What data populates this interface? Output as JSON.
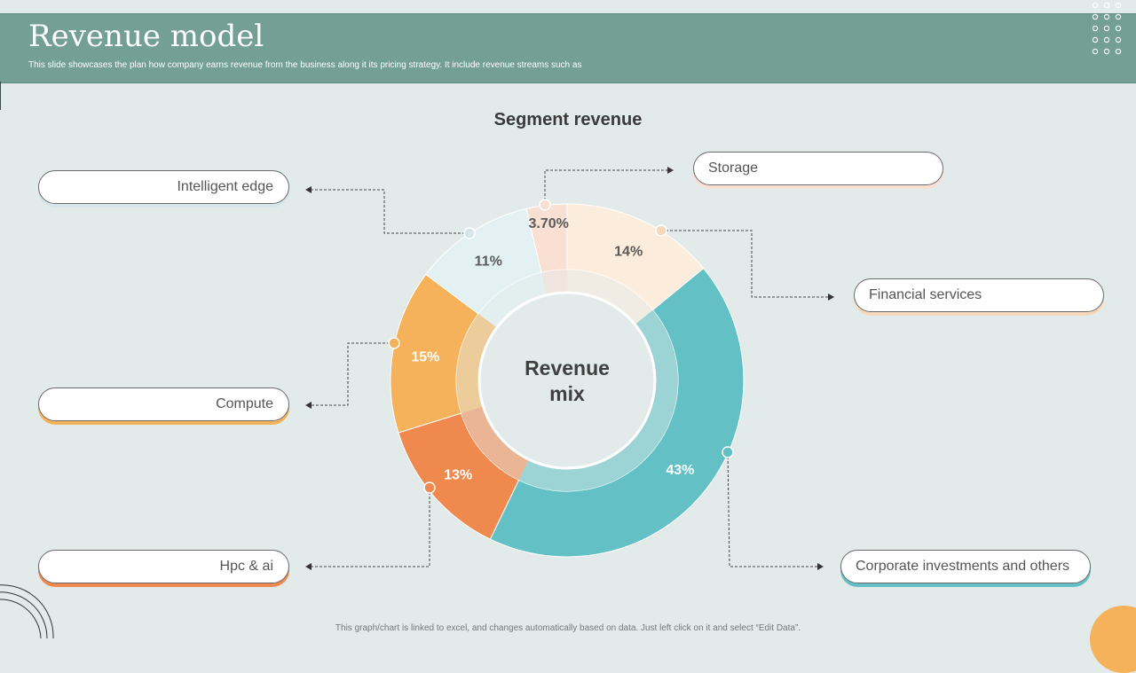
{
  "header": {
    "title": "Revenue model",
    "subtitle": "This slide showcases the plan how company earns revenue from the business along it its pricing strategy. It include revenue streams such as"
  },
  "colors": {
    "header_bg": "#739f94",
    "page_bg": "#e3ebea",
    "teal": "#63c1c5",
    "peach": "#fcecdc",
    "light_pink": "#fadfd3",
    "light_blue": "#e3f1f2",
    "orange": "#f5b25a",
    "dark_orange": "#f0894e"
  },
  "chart_data": {
    "type": "pie",
    "title": "Segment revenue",
    "center_label": [
      "Revenue",
      "mix"
    ],
    "slices": [
      {
        "name": "Financial services",
        "value": 14,
        "label": "14%",
        "color": "#fcecdc",
        "shadow": "#f6d9bd",
        "accent_color": "#f6d9bd"
      },
      {
        "name": "Corporate investments  and others",
        "value": 43,
        "label": "43%",
        "color": "#63c1c5",
        "shadow": "#4aa6ab",
        "accent_color": "#63c1c5"
      },
      {
        "name": "Hpc & ai",
        "value": 13,
        "label": "13%",
        "color": "#f0894e",
        "shadow": "#f0894e",
        "accent_color": "#f0894e"
      },
      {
        "name": "Compute",
        "value": 15,
        "label": "15%",
        "color": "#f5b25a",
        "shadow": "#f5b25a",
        "accent_color": "#f5b25a"
      },
      {
        "name": "Intelligent  edge",
        "value": 11,
        "label": "11%",
        "color": "#e3f1f2",
        "shadow": "#d6e6e8",
        "accent_color": "#d6e6e8"
      },
      {
        "name": "Storage",
        "value": 3.7,
        "label": "3.70%",
        "color": "#fadfd3",
        "shadow": "#f6d9bd",
        "accent_color": "#fadfd3"
      }
    ]
  },
  "footer": "This graph/chart is linked to excel, and changes automatically based on data. Just left click on it and select “Edit Data”."
}
